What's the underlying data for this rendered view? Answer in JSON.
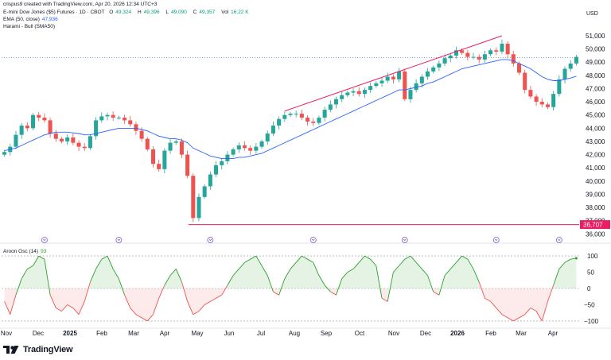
{
  "header": {
    "created": "crispus9 created with TradingView.com, Apr 20, 2026 12:34 UTC+3",
    "symbol": "E-mini Dow Jones ($5) Futures · 1D · CBOT",
    "ohlc": [
      {
        "k": "O",
        "v": "49,324"
      },
      {
        "k": "H",
        "v": "49,396"
      },
      {
        "k": "L",
        "v": "49,090"
      },
      {
        "k": "C",
        "v": "49,357"
      },
      {
        "k": "Vol",
        "v": "16.22 K"
      }
    ],
    "ema_label": "EMA (50, close)",
    "ema_value": "47,936",
    "harami_label": "Harami - Bull (SMA50)",
    "currency": "USD"
  },
  "osc": {
    "label": "Aroon Osc (14)",
    "value": "93"
  },
  "brand": {
    "name": "TradingView",
    "accent": "#131722"
  },
  "colors": {
    "up": "#26a69a",
    "down": "#ef5350",
    "ema": "#2962ff",
    "trend": "#e91e63",
    "hline": "#e91e63",
    "osc_up": "#2ca02c",
    "osc_down": "#ef5350"
  },
  "icons": [
    "harami-marker-icon",
    "tradingview-logo-icon"
  ],
  "chart_data": [
    {
      "type": "candlestick",
      "title": "",
      "y_ticks": [
        36000,
        37000,
        38000,
        39000,
        40000,
        41000,
        42000,
        43000,
        44000,
        45000,
        46000,
        47000,
        48000,
        49000,
        50000,
        51000
      ],
      "ylim": [
        35900,
        51300
      ],
      "last_price_line": 49357,
      "support_level": 36707,
      "support_label": "36,707",
      "x_labels": [
        "Nov",
        "Dec",
        "2025",
        "Feb",
        "Mar",
        "Apr",
        "May",
        "Jun",
        "Jul",
        "Aug",
        "Sep",
        "Oct",
        "Nov",
        "Dec",
        "2026",
        "Feb",
        "Mar",
        "Apr"
      ],
      "trend_channel": [
        {
          "x": "Jul 2025",
          "y": 45300
        },
        {
          "x": "Feb 2026",
          "y": 51000
        }
      ],
      "close_series": [
        42200,
        42600,
        43500,
        44200,
        44000,
        45000,
        44800,
        44600,
        43600,
        43200,
        43000,
        43300,
        42900,
        42600,
        42500,
        43400,
        44600,
        44900,
        45000,
        44800,
        44800,
        44600,
        44300,
        43800,
        43200,
        42400,
        41300,
        40900,
        42300,
        42900,
        43000,
        42000,
        40400,
        37200,
        38800,
        39600,
        40500,
        41200,
        41500,
        42000,
        42400,
        42700,
        42500,
        42300,
        42600,
        43000,
        43600,
        44200,
        44700,
        45000,
        45100,
        45100,
        44800,
        44500,
        44400,
        44800,
        45400,
        45800,
        46200,
        46500,
        46700,
        46800,
        46600,
        46900,
        47200,
        47400,
        47600,
        47900,
        47700,
        48300,
        46200,
        46900,
        47400,
        47900,
        48300,
        48600,
        48900,
        49300,
        49500,
        49900,
        49700,
        49400,
        49400,
        49200,
        49600,
        49900,
        49800,
        50400,
        49600,
        48900,
        48200,
        46900,
        46400,
        46000,
        45800,
        45600,
        46600,
        47700,
        48500,
        48900,
        49400
      ],
      "ema_series": [
        42300,
        42400,
        42500,
        42700,
        42900,
        43100,
        43300,
        43500,
        43600,
        43700,
        43700,
        43700,
        43650,
        43600,
        43500,
        43500,
        43600,
        43700,
        43800,
        43900,
        44000,
        44000,
        44000,
        44000,
        43900,
        43800,
        43600,
        43400,
        43300,
        43200,
        43200,
        43100,
        42900,
        42500,
        42300,
        42100,
        41900,
        41800,
        41700,
        41700,
        41700,
        41800,
        41800,
        41900,
        42000,
        42100,
        42300,
        42500,
        42700,
        42900,
        43100,
        43300,
        43500,
        43700,
        43900,
        44100,
        44300,
        44500,
        44700,
        44900,
        45100,
        45300,
        45500,
        45700,
        45900,
        46100,
        46300,
        46500,
        46700,
        46900,
        46900,
        47000,
        47100,
        47200,
        47400,
        47500,
        47700,
        47900,
        48100,
        48300,
        48500,
        48600,
        48700,
        48800,
        48900,
        49000,
        49100,
        49200,
        49200,
        49100,
        48900,
        48700,
        48500,
        48200,
        47900,
        47700,
        47600,
        47600,
        47700,
        47800,
        47936
      ],
      "harami_markers": [
        "Nov",
        "Mar",
        "Jul",
        "Sep",
        "Nov",
        "Jan",
        "Mar"
      ]
    },
    {
      "type": "area",
      "title": "Aroon Osc (14)",
      "y_ticks": [
        100,
        50,
        0,
        -50,
        -100
      ],
      "ylim": [
        -110,
        110
      ],
      "values": [
        -40,
        -80,
        -20,
        30,
        60,
        70,
        100,
        90,
        -20,
        -60,
        -70,
        -50,
        -60,
        -80,
        -40,
        20,
        60,
        90,
        100,
        60,
        30,
        -20,
        -60,
        -80,
        -90,
        -100,
        -80,
        -30,
        10,
        40,
        60,
        20,
        -40,
        -80,
        -70,
        -50,
        -40,
        -30,
        -20,
        10,
        40,
        60,
        80,
        90,
        100,
        70,
        40,
        -10,
        -20,
        30,
        60,
        80,
        100,
        90,
        80,
        40,
        10,
        -10,
        -20,
        30,
        50,
        60,
        80,
        100,
        90,
        70,
        -30,
        -40,
        50,
        70,
        90,
        100,
        80,
        60,
        40,
        -10,
        -20,
        40,
        60,
        80,
        100,
        90,
        60,
        20,
        -30,
        -40,
        -60,
        -80,
        -90,
        -100,
        -90,
        -80,
        -60,
        -70,
        -100,
        -40,
        10,
        60,
        80,
        90,
        93
      ]
    }
  ]
}
